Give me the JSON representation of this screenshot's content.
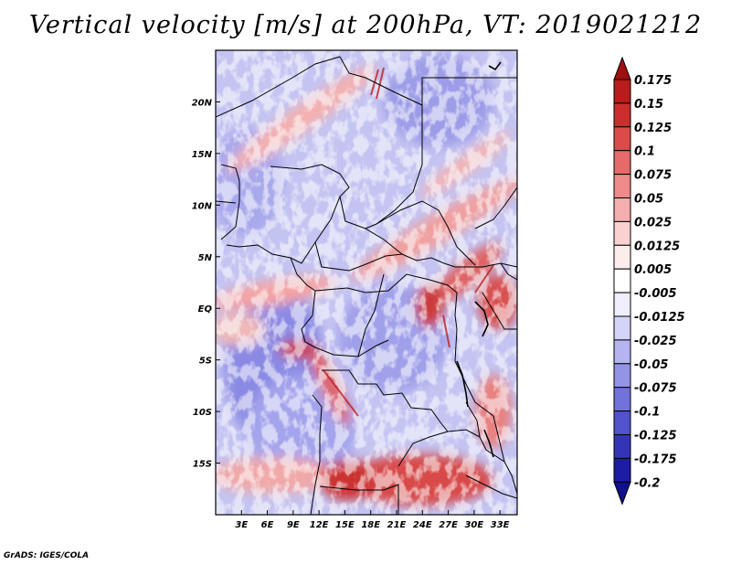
{
  "title": "Vertical velocity [m/s] at 200hPa, VT: 2019021212",
  "credit": "GrADS: IGES/COLA",
  "map": {
    "lat_labels": [
      "20N",
      "15N",
      "10N",
      "5N",
      "EQ",
      "5S",
      "10S",
      "15S"
    ],
    "lon_labels": [
      "3E",
      "6E",
      "9E",
      "12E",
      "15E",
      "18E",
      "21E",
      "24E",
      "27E",
      "30E",
      "33E"
    ],
    "lat_values": [
      20,
      15,
      10,
      5,
      0,
      -5,
      -10,
      -15
    ],
    "lon_values": [
      3,
      6,
      9,
      12,
      15,
      18,
      21,
      24,
      27,
      30,
      33
    ],
    "lon_range": [
      0,
      35
    ],
    "lat_range": [
      -20,
      25
    ]
  },
  "colorbar": {
    "labels": [
      "0.175",
      "0.15",
      "0.125",
      "0.1",
      "0.075",
      "0.05",
      "0.025",
      "0.0125",
      "0.005",
      "-0.005",
      "-0.0125",
      "-0.025",
      "-0.05",
      "-0.075",
      "-0.1",
      "-0.125",
      "-0.175",
      "-0.2"
    ],
    "colors": [
      "#a01010",
      "#b81c1c",
      "#cc2e2e",
      "#dc4a4a",
      "#e66a6a",
      "#ee8a8a",
      "#f5aeae",
      "#fbd0d0",
      "#fdecec",
      "#ffffff",
      "#eeeefc",
      "#d4d4f8",
      "#b4b4f0",
      "#9494e6",
      "#7272dc",
      "#5252cc",
      "#3434b8",
      "#1c1ca4",
      "#10108a"
    ]
  }
}
